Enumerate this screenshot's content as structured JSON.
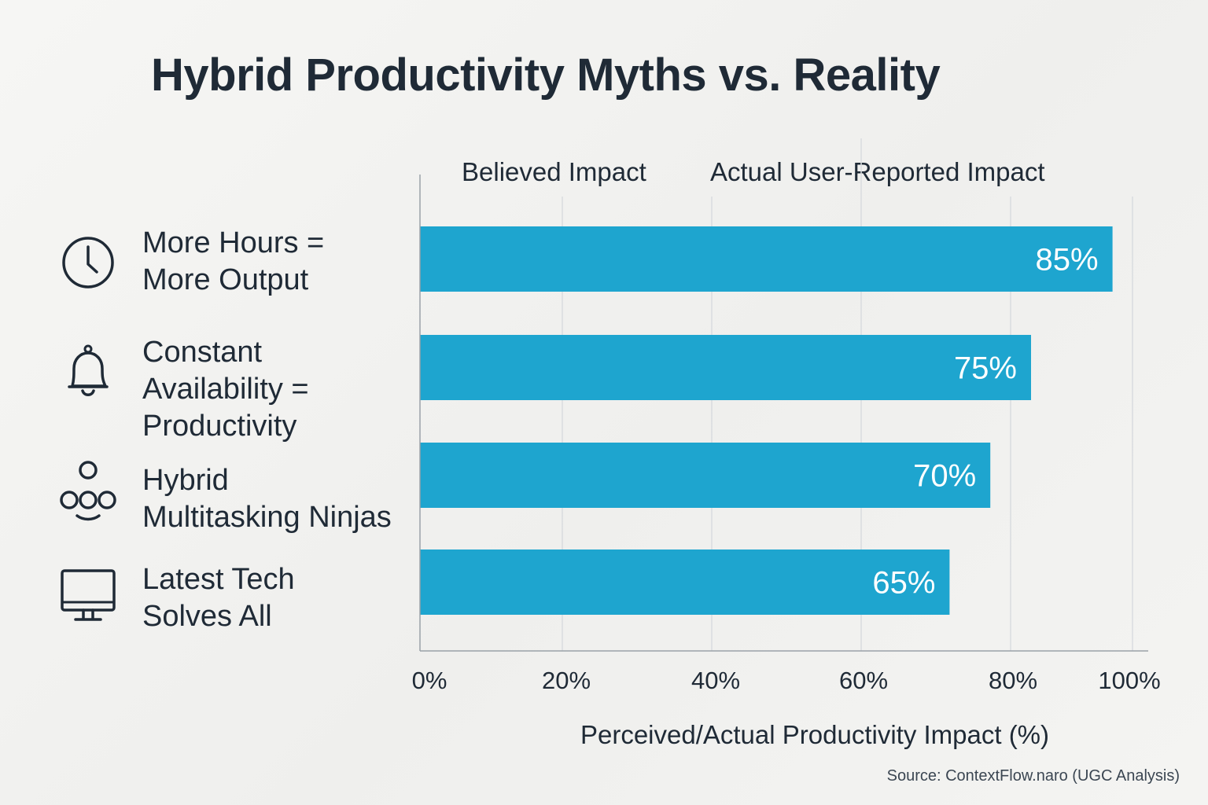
{
  "chart_data": {
    "type": "bar",
    "orientation": "horizontal",
    "title": "Hybrid Productivity Myths vs. Reality",
    "legend": [
      "Believed Impact",
      "Actual User-Reported Impact"
    ],
    "legend_position": "top",
    "categories": [
      "More Hours =\nMore Output",
      "Constant\nAvailability =\nProductivity",
      "Hybrid\nMultitasking Ninjas",
      "Latest Tech\nSolves All"
    ],
    "category_icons": [
      "clock-icon",
      "bell-icon",
      "juggling-icon",
      "monitor-icon"
    ],
    "values": [
      85,
      75,
      70,
      65
    ],
    "value_labels": [
      "85%",
      "75%",
      "70%",
      "65%"
    ],
    "xlim": [
      0,
      100
    ],
    "x_ticks": [
      0,
      20,
      40,
      60,
      80,
      100
    ],
    "x_tick_labels": [
      "0%",
      "20%",
      "40%",
      "60%",
      "80%",
      "100%"
    ],
    "xlabel": "Perceived/Actual Productivity Impact (%)",
    "ylabel": "",
    "grid": true,
    "bar_color": "#1ea5cf",
    "source": "Source: ContextFlow.naro (UGC Analysis)"
  }
}
